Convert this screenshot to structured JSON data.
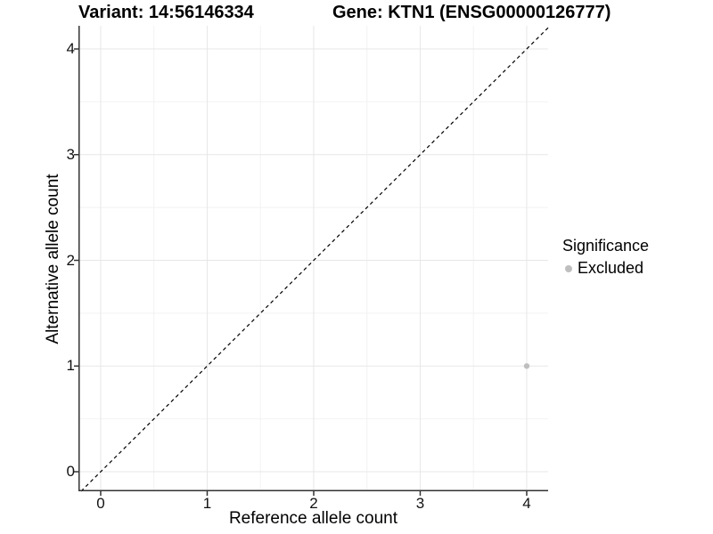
{
  "title_left": "Variant: 14:56146334",
  "title_right": "Gene: KTN1 (ENSG00000126777)",
  "chart_data": {
    "type": "scatter",
    "title": "Variant: 14:56146334 / Gene: KTN1 (ENSG00000126777)",
    "xlabel": "Reference allele count",
    "ylabel": "Alternative allele count",
    "xlim": [
      -0.209,
      4.201
    ],
    "ylim": [
      -0.185,
      4.219
    ],
    "x_ticks": [
      0,
      1,
      2,
      3,
      4
    ],
    "y_ticks": [
      0,
      1,
      2,
      3,
      4
    ],
    "grid": true,
    "reference_line": {
      "equation": "y = x",
      "style": "dashed",
      "color": "#000000"
    },
    "series": [
      {
        "name": "Excluded",
        "color": "#BEBEBE",
        "points": [
          {
            "x": 4,
            "y": 1
          }
        ]
      }
    ],
    "legend": {
      "title": "Significance",
      "position": "right",
      "items": [
        {
          "label": "Excluded",
          "color": "#BEBEBE"
        }
      ]
    }
  },
  "colors": {
    "background": "#FFFFFF",
    "axis_line": "#333333",
    "grid_major": "#E7E7E7",
    "grid_minor": "#F2F2F2",
    "dashed_line": "#000000",
    "point_excluded": "#BEBEBE"
  }
}
